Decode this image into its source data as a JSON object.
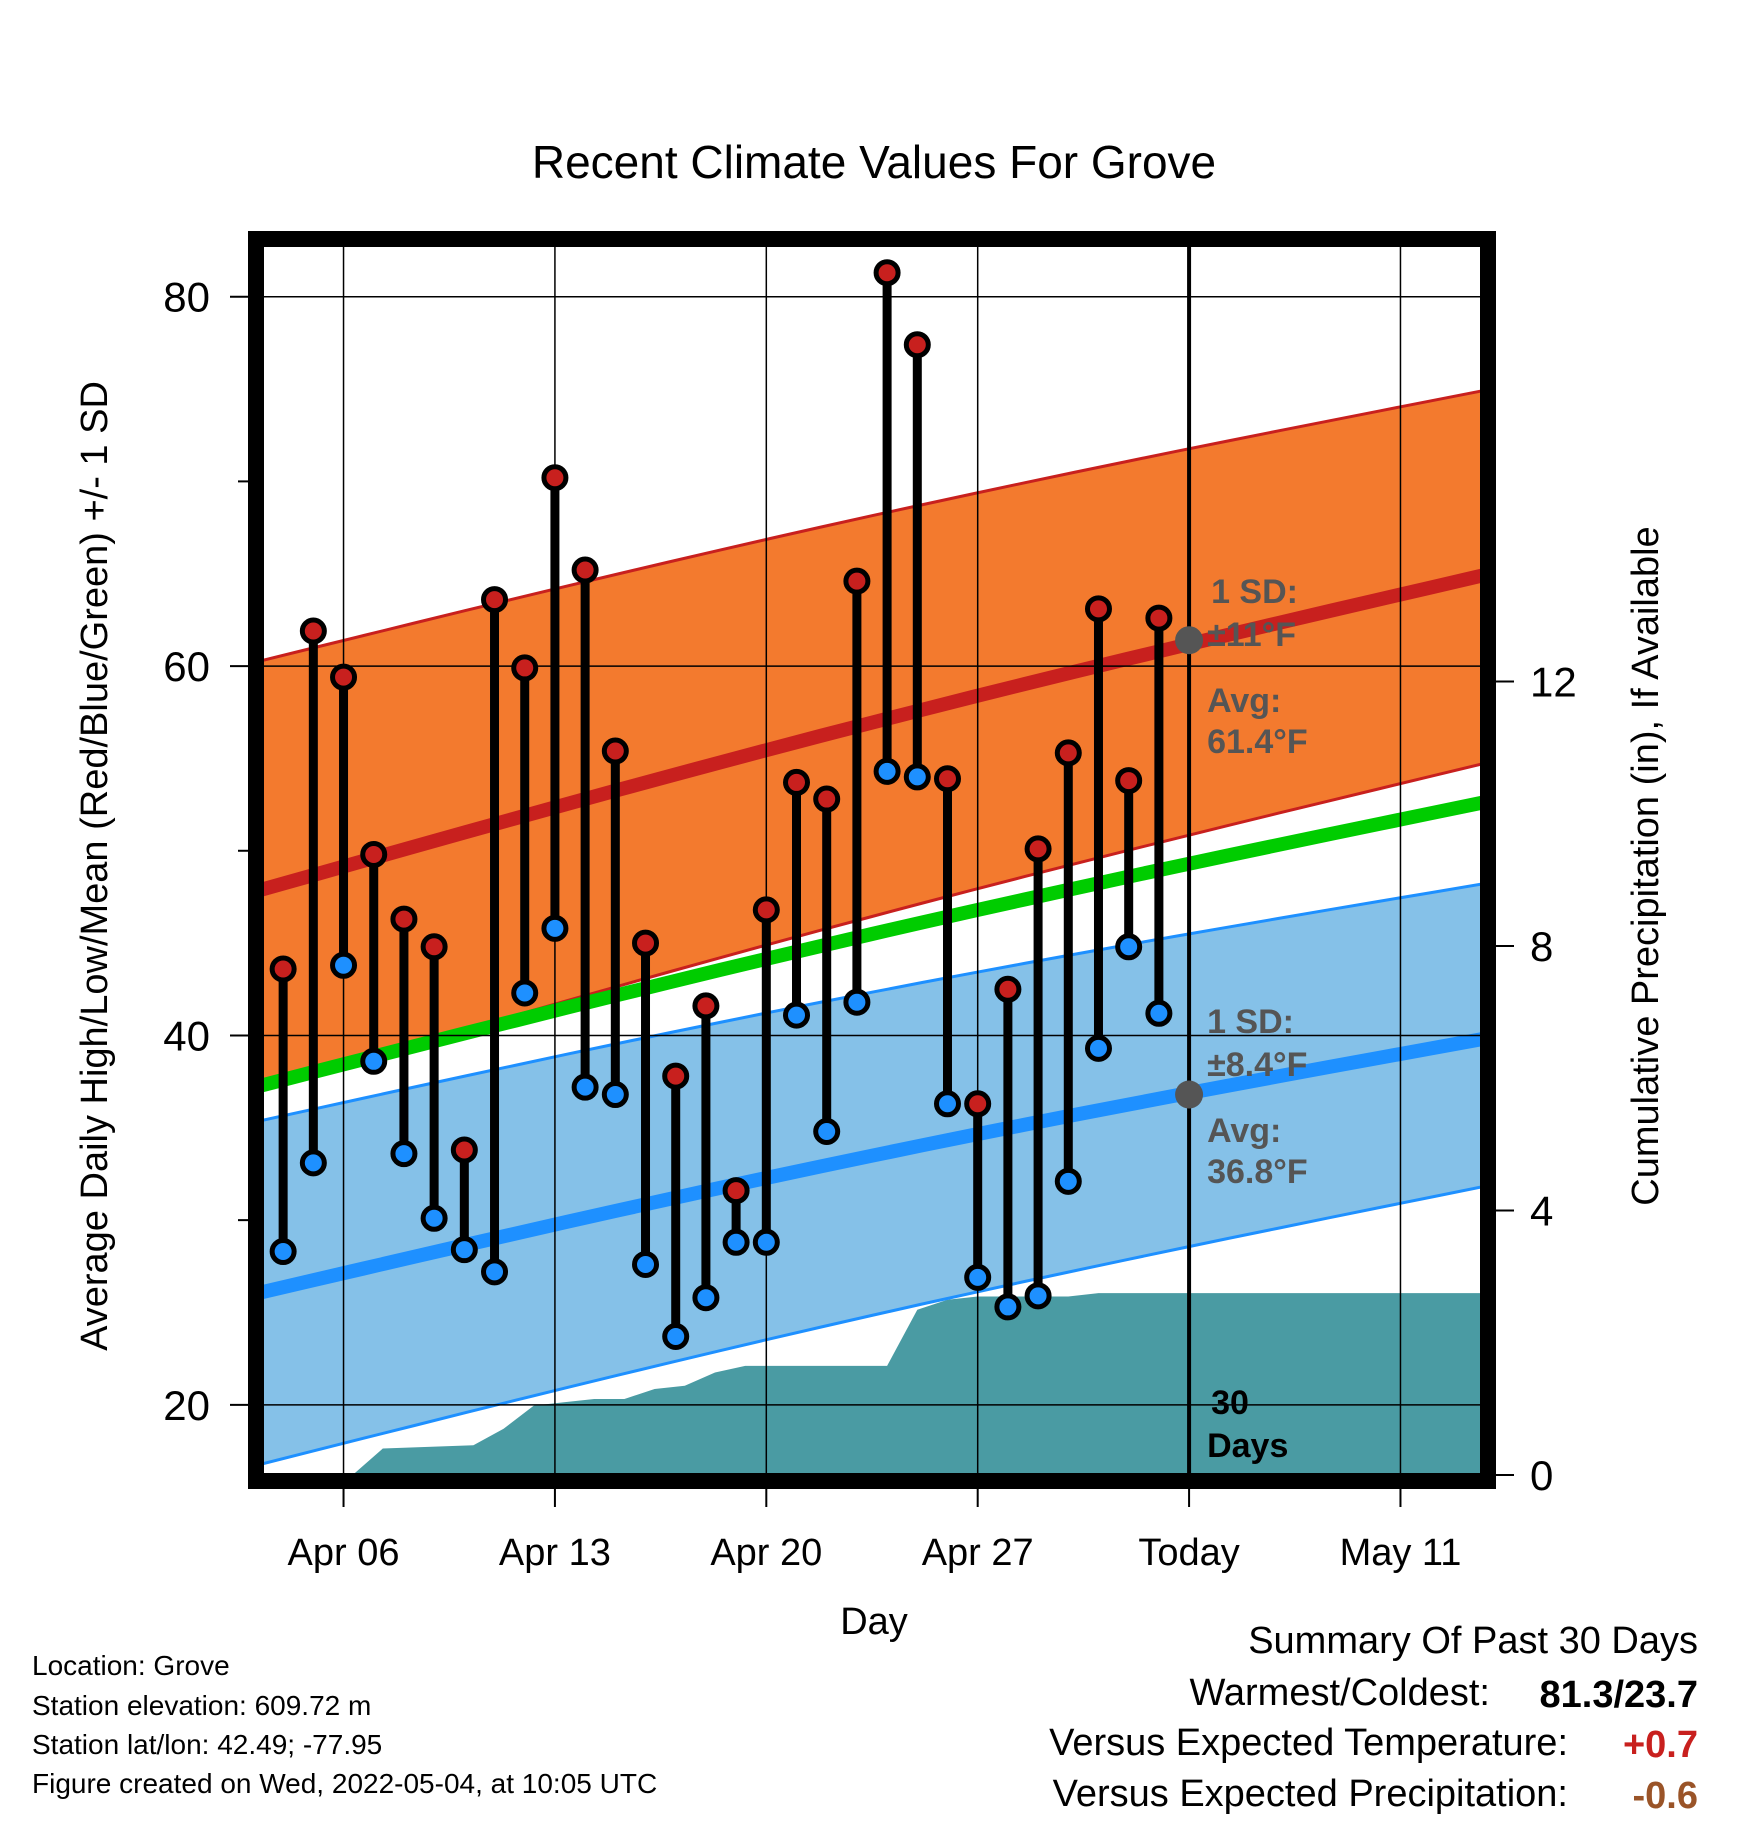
{
  "chart_data": {
    "type": "line",
    "title": "Recent Climate Values For Grove",
    "xlabel": "Day",
    "ylabel_left": "Average Daily High/Low/Mean (Red/Blue/Green) +/- 1 SD",
    "ylabel_right": "Cumulative Precipitation (in), If Available",
    "x_ticks": [
      "Apr 06",
      "Apr 13",
      "Apr 20",
      "Apr 27",
      "Today",
      "May 11"
    ],
    "x_tick_days": [
      6,
      13,
      20,
      27,
      34,
      41
    ],
    "x_range_days": [
      3.3,
      43.7
    ],
    "today_day": 34,
    "y_left_range": [
      16.2,
      82.8
    ],
    "y_left_ticks": [
      20,
      40,
      60,
      80
    ],
    "y_right_range": [
      0,
      18.6
    ],
    "y_right_ticks": [
      0,
      4,
      8,
      12
    ],
    "grid": true,
    "days": [
      4,
      5,
      6,
      7,
      8,
      9,
      10,
      11,
      12,
      13,
      14,
      15,
      16,
      17,
      18,
      19,
      20,
      21,
      22,
      23,
      24,
      25,
      26,
      27,
      28,
      29,
      30,
      31,
      32,
      33
    ],
    "series": [
      {
        "name": "High",
        "color": "#c8201e",
        "values": [
          43.6,
          61.9,
          59.4,
          49.8,
          46.3,
          44.8,
          33.8,
          63.6,
          59.9,
          70.2,
          65.2,
          55.4,
          45.0,
          37.8,
          41.6,
          31.6,
          46.8,
          53.7,
          52.8,
          64.6,
          81.3,
          77.4,
          53.9,
          36.3,
          42.5,
          50.1,
          55.3,
          63.1,
          53.8,
          62.6
        ]
      },
      {
        "name": "Low",
        "color": "#1e90ff",
        "values": [
          28.3,
          33.1,
          43.8,
          38.6,
          33.6,
          30.1,
          28.4,
          27.2,
          42.3,
          45.8,
          37.2,
          36.8,
          27.6,
          23.7,
          25.8,
          28.8,
          28.8,
          41.1,
          34.8,
          41.8,
          54.3,
          54.0,
          36.3,
          26.9,
          25.3,
          25.9,
          32.1,
          39.3,
          44.8,
          41.2
        ]
      }
    ],
    "normals": {
      "high_avg": [
        47.9,
        64.9
      ],
      "high_sd_band": [
        [
          60.3,
          37.1
        ],
        [
          74.9,
          54.7
        ]
      ],
      "low_avg": [
        26.1,
        39.8
      ],
      "low_sd_band": [
        [
          35.4,
          16.8
        ],
        [
          48.2,
          31.8
        ]
      ],
      "mean_avg": [
        37.3,
        52.6
      ]
    },
    "precip_cumulative": [
      [
        3.3,
        0
      ],
      [
        6.3,
        0
      ],
      [
        7.3,
        0.4
      ],
      [
        10.3,
        0.45
      ],
      [
        11.3,
        0.7
      ],
      [
        12.3,
        1.05
      ],
      [
        13.3,
        1.1
      ],
      [
        14.3,
        1.15
      ],
      [
        15.3,
        1.15
      ],
      [
        16.3,
        1.3
      ],
      [
        17.3,
        1.35
      ],
      [
        18.3,
        1.55
      ],
      [
        19.3,
        1.65
      ],
      [
        20.3,
        1.65
      ],
      [
        24.0,
        1.65
      ],
      [
        25.0,
        2.5
      ],
      [
        26.0,
        2.65
      ],
      [
        27.0,
        2.7
      ],
      [
        30.0,
        2.7
      ],
      [
        31.0,
        2.75
      ],
      [
        32.0,
        2.75
      ],
      [
        33.0,
        2.75
      ],
      [
        43.7,
        2.75
      ]
    ],
    "annotations": {
      "high_sd": [
        "1 SD:",
        "±11°F"
      ],
      "high_avg": [
        "Avg:",
        "61.4°F"
      ],
      "low_sd": [
        "1 SD:",
        "±8.4°F"
      ],
      "low_avg": [
        "Avg:",
        "36.8°F"
      ],
      "days": [
        "30",
        "Days"
      ]
    },
    "colors": {
      "high_band": "#f37a2e",
      "high_line": "#c8201e",
      "low_band": "#85c1e8",
      "low_line": "#1e90ff",
      "mean_line": "#00cc00",
      "precip": "#4a9ba3",
      "annot": "#555555"
    }
  },
  "footer": {
    "location": "Location: Grove",
    "elevation": "Station elevation: 609.72 m",
    "latlon": "Station lat/lon: 42.49; -77.95",
    "created": "Figure created on Wed, 2022-05-04, at 10:05 UTC"
  },
  "summary": {
    "title": "Summary Of Past 30 Days",
    "warmest_coldest_label": "Warmest/Coldest:",
    "warmest_coldest_value": "81.3/23.7",
    "temp_label": "Versus Expected Temperature:",
    "temp_value": "+0.7",
    "temp_color": "#c8201e",
    "precip_label": "Versus Expected Precipitation:",
    "precip_value": "-0.6",
    "precip_color": "#9a5428"
  }
}
